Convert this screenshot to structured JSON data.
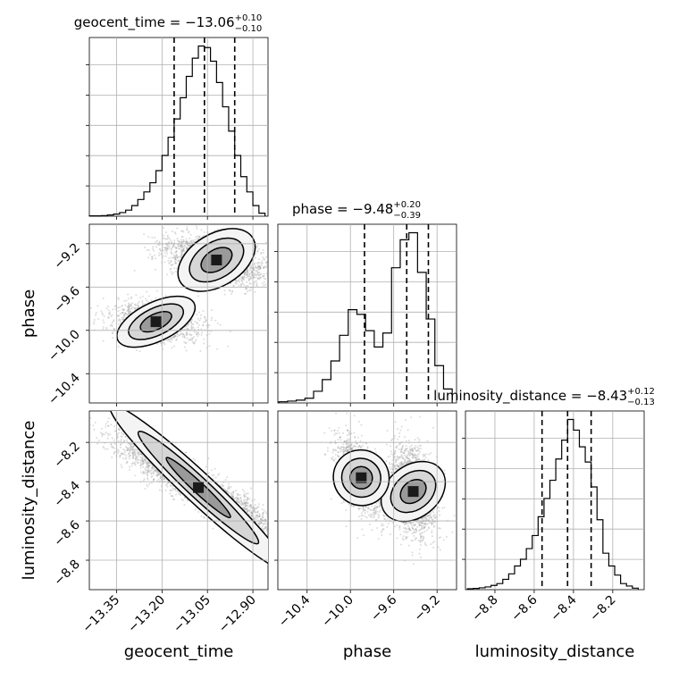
{
  "chart_data": {
    "type": "corner",
    "parameters": [
      "geocent_time",
      "phase",
      "luminosity_distance"
    ],
    "panels": {
      "hist_geocent_time": {
        "type": "bar",
        "title": {
          "prefix": "geocent_time = ",
          "value": "−13.06",
          "upper": "+0.10",
          "lower": "−0.10"
        },
        "xlim": [
          -13.44,
          -12.85
        ],
        "quantiles": [
          -13.16,
          -13.06,
          -12.96
        ],
        "bin_edges": [
          -13.44,
          -13.42,
          -13.4,
          -13.38,
          -13.36,
          -13.34,
          -13.32,
          -13.3,
          -13.28,
          -13.26,
          -13.24,
          -13.22,
          -13.2,
          -13.18,
          -13.16,
          -13.14,
          -13.12,
          -13.1,
          -13.08,
          -13.06,
          -13.04,
          -13.02,
          -13.0,
          -12.98,
          -12.96,
          -12.94,
          -12.92,
          -12.9,
          -12.88,
          -12.86
        ],
        "values": [
          1,
          1,
          2,
          4,
          7,
          12,
          20,
          35,
          55,
          80,
          110,
          150,
          200,
          260,
          320,
          390,
          460,
          520,
          560,
          555,
          510,
          440,
          360,
          280,
          200,
          130,
          80,
          35,
          10
        ]
      },
      "hist_phase": {
        "type": "bar",
        "title": {
          "prefix": "phase = ",
          "value": "−9.48",
          "upper": "+0.20",
          "lower": "−0.39"
        },
        "xlim": [
          -10.67,
          -9.02
        ],
        "quantiles": [
          -9.87,
          -9.48,
          -9.28
        ],
        "bin_edges": [
          -10.66,
          -10.58,
          -10.5,
          -10.42,
          -10.34,
          -10.26,
          -10.18,
          -10.1,
          -10.02,
          -9.94,
          -9.86,
          -9.78,
          -9.7,
          -9.62,
          -9.54,
          -9.46,
          -9.38,
          -9.3,
          -9.22,
          -9.14,
          -9.06
        ],
        "values": [
          5,
          8,
          12,
          20,
          50,
          100,
          180,
          290,
          400,
          380,
          310,
          240,
          300,
          580,
          700,
          730,
          560,
          360,
          160,
          60
        ]
      },
      "hist_luminosity_distance": {
        "type": "bar",
        "title": {
          "prefix": "luminosity_distance = ",
          "value": "−8.43",
          "upper": "+0.12",
          "lower": "−0.13"
        },
        "xlim": [
          -8.95,
          -8.04
        ],
        "quantiles": [
          -8.56,
          -8.43,
          -8.31
        ],
        "bin_edges": [
          -8.94,
          -8.91,
          -8.88,
          -8.85,
          -8.82,
          -8.79,
          -8.76,
          -8.73,
          -8.7,
          -8.67,
          -8.64,
          -8.61,
          -8.58,
          -8.55,
          -8.52,
          -8.49,
          -8.46,
          -8.43,
          -8.4,
          -8.37,
          -8.34,
          -8.31,
          -8.28,
          -8.25,
          -8.22,
          -8.19,
          -8.16,
          -8.13,
          -8.1,
          -8.07
        ],
        "values": [
          3,
          4,
          6,
          9,
          14,
          20,
          34,
          52,
          78,
          100,
          135,
          178,
          240,
          300,
          360,
          430,
          492,
          560,
          525,
          470,
          420,
          338,
          230,
          120,
          78,
          48,
          20,
          12,
          5
        ]
      },
      "scatter_phase_vs_geocent_time": {
        "type": "scatter",
        "x": "geocent_time",
        "y": "phase",
        "xlim": [
          -13.44,
          -12.85
        ],
        "ylim": [
          -10.67,
          -9.02
        ]
      },
      "scatter_luminosity_distance_vs_geocent_time": {
        "type": "scatter",
        "x": "geocent_time",
        "y": "luminosity_distance",
        "xlim": [
          -13.44,
          -12.85
        ],
        "ylim": [
          -8.95,
          -8.04
        ]
      },
      "scatter_luminosity_distance_vs_phase": {
        "type": "scatter",
        "x": "phase",
        "y": "luminosity_distance",
        "xlim": [
          -10.67,
          -9.02
        ],
        "ylim": [
          -8.95,
          -8.04
        ]
      }
    },
    "axes": {
      "geocent_time": {
        "label": "geocent_time",
        "ticks": [
          -13.35,
          -13.2,
          -13.05,
          -12.9
        ],
        "tick_labels": [
          "−13.35",
          "−13.20",
          "−13.05",
          "−12.90"
        ]
      },
      "phase": {
        "label": "phase",
        "ticks": [
          -10.4,
          -10.0,
          -9.6,
          -9.2
        ],
        "tick_labels": [
          "−10.4",
          "−10.0",
          "−9.6",
          "−9.2"
        ]
      },
      "luminosity_distance": {
        "label": "luminosity_distance",
        "ticks": [
          -8.8,
          -8.6,
          -8.4,
          -8.2
        ],
        "tick_labels": [
          "−8.8",
          "−8.6",
          "−8.4",
          "−8.2"
        ]
      }
    },
    "grid": true
  }
}
